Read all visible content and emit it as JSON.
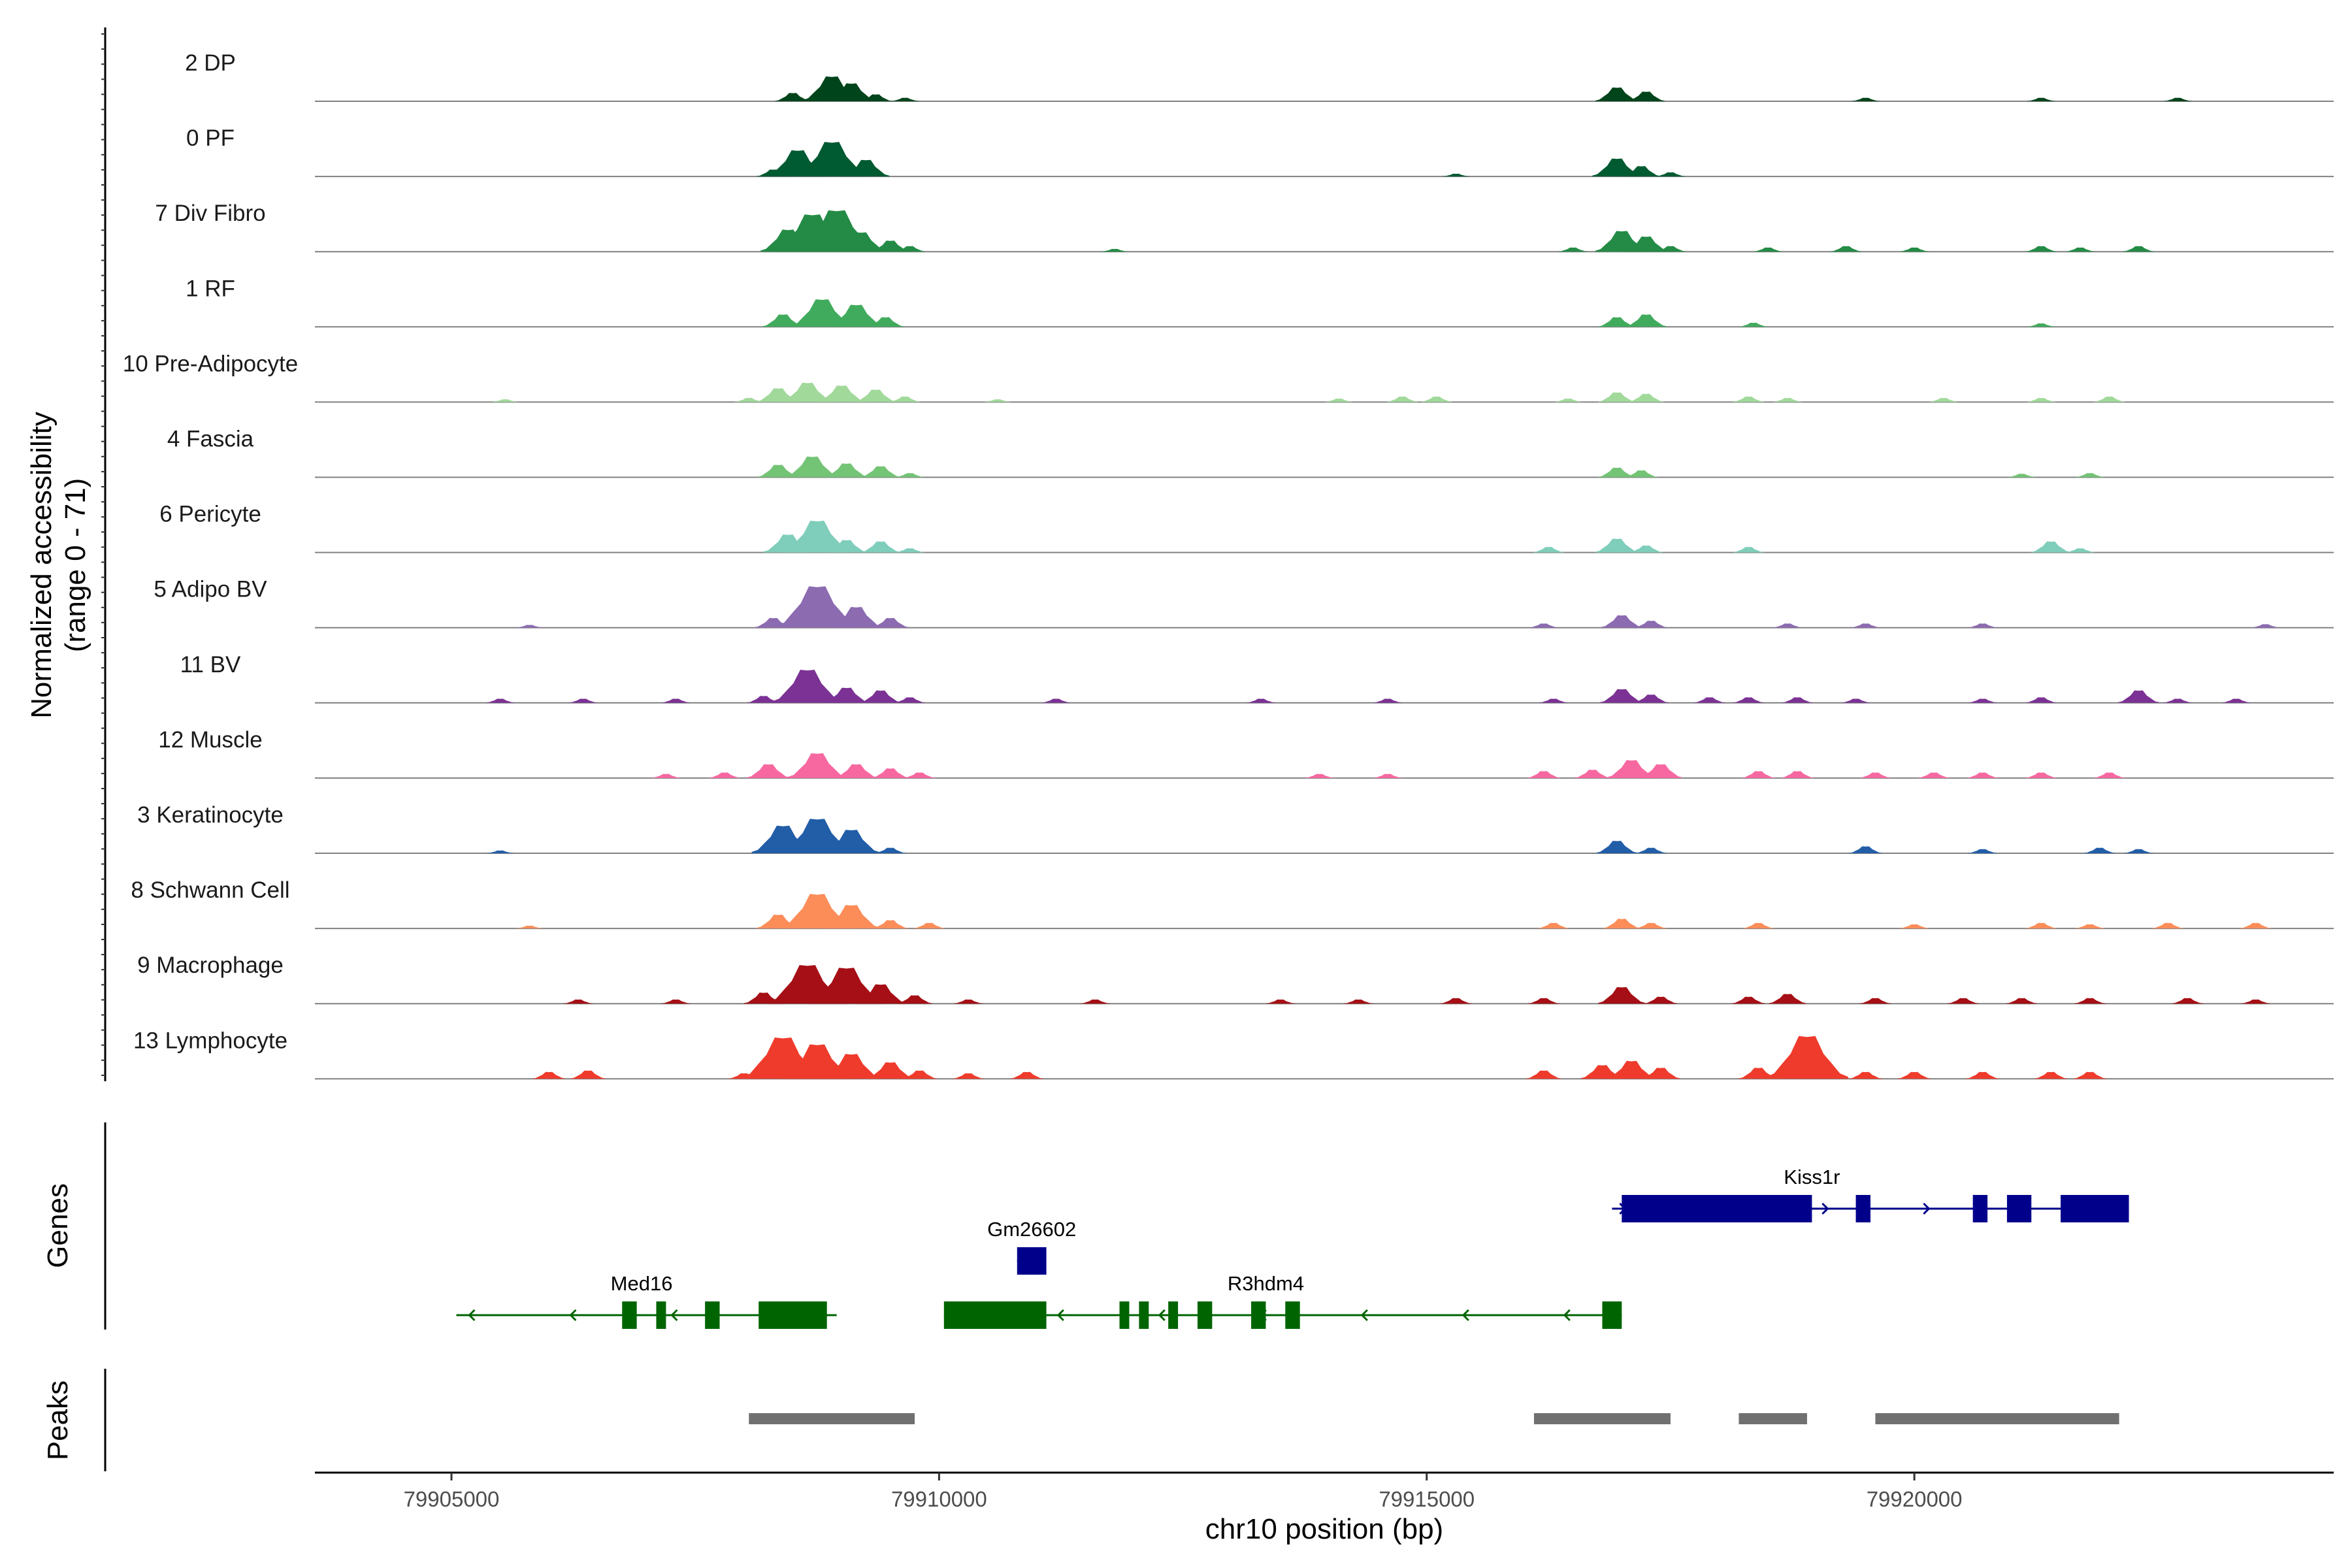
{
  "chart_data": {
    "type": "area",
    "description_chromosome": "chr10",
    "xlabel": "chr10 position (bp)",
    "ylabel": "Normalized accessibility",
    "ylabel_range": "(range 0 - 71)",
    "ylim": [
      0,
      71
    ],
    "xlim": [
      79903600,
      79924300
    ],
    "x_ticks": [
      79905000,
      79910000,
      79915000,
      79920000
    ],
    "panel_labels": {
      "genes": "Genes",
      "peaks": "Peaks"
    },
    "tracks": [
      {
        "name": "2 DP",
        "color": "#00441b",
        "peaks": [
          [
            79908500,
            12
          ],
          [
            79908900,
            36
          ],
          [
            79909100,
            26
          ],
          [
            79909350,
            10
          ],
          [
            79909650,
            5
          ],
          [
            79916950,
            20
          ],
          [
            79917250,
            14
          ],
          [
            79919500,
            5
          ],
          [
            79921300,
            5
          ],
          [
            79922700,
            5
          ]
        ]
      },
      {
        "name": "0 PF",
        "color": "#005a32",
        "peaks": [
          [
            79908300,
            10
          ],
          [
            79908550,
            38
          ],
          [
            79908900,
            50
          ],
          [
            79909250,
            24
          ],
          [
            79915300,
            4
          ],
          [
            79916950,
            26
          ],
          [
            79917200,
            15
          ],
          [
            79917500,
            6
          ]
        ]
      },
      {
        "name": "7 Div Fibro",
        "color": "#238b45",
        "peaks": [
          [
            79908450,
            32
          ],
          [
            79908700,
            54
          ],
          [
            79908950,
            60
          ],
          [
            79909200,
            28
          ],
          [
            79909500,
            16
          ],
          [
            79909700,
            8
          ],
          [
            79911800,
            4
          ],
          [
            79916500,
            6
          ],
          [
            79917000,
            30
          ],
          [
            79917250,
            22
          ],
          [
            79917500,
            8
          ],
          [
            79918500,
            6
          ],
          [
            79919300,
            8
          ],
          [
            79920000,
            6
          ],
          [
            79921300,
            8
          ],
          [
            79921700,
            6
          ],
          [
            79922300,
            8
          ]
        ]
      },
      {
        "name": "1 RF",
        "color": "#41ab5d",
        "peaks": [
          [
            79908400,
            18
          ],
          [
            79908800,
            40
          ],
          [
            79909150,
            32
          ],
          [
            79909450,
            14
          ],
          [
            79916950,
            14
          ],
          [
            79917250,
            18
          ],
          [
            79918350,
            6
          ],
          [
            79921300,
            5
          ]
        ]
      },
      {
        "name": "10 Pre-Adipocyte",
        "color": "#a1d99b",
        "peaks": [
          [
            79905550,
            4
          ],
          [
            79908050,
            6
          ],
          [
            79908350,
            20
          ],
          [
            79908650,
            28
          ],
          [
            79909000,
            24
          ],
          [
            79909350,
            18
          ],
          [
            79909650,
            8
          ],
          [
            79910600,
            4
          ],
          [
            79914100,
            5
          ],
          [
            79914750,
            8
          ],
          [
            79915100,
            8
          ],
          [
            79916450,
            5
          ],
          [
            79916950,
            14
          ],
          [
            79917250,
            12
          ],
          [
            79918300,
            8
          ],
          [
            79918700,
            6
          ],
          [
            79920300,
            6
          ],
          [
            79921300,
            6
          ],
          [
            79922000,
            8
          ]
        ]
      },
      {
        "name": "4 Fascia",
        "color": "#74c476",
        "peaks": [
          [
            79908350,
            18
          ],
          [
            79908700,
            30
          ],
          [
            79909050,
            20
          ],
          [
            79909400,
            16
          ],
          [
            79909700,
            6
          ],
          [
            79916950,
            14
          ],
          [
            79917200,
            10
          ],
          [
            79921100,
            5
          ],
          [
            79921800,
            6
          ]
        ]
      },
      {
        "name": "6 Pericyte",
        "color": "#7fcdbb",
        "peaks": [
          [
            79908450,
            26
          ],
          [
            79908750,
            46
          ],
          [
            79909050,
            18
          ],
          [
            79909400,
            16
          ],
          [
            79909700,
            6
          ],
          [
            79916250,
            8
          ],
          [
            79916950,
            20
          ],
          [
            79917250,
            10
          ],
          [
            79918300,
            8
          ],
          [
            79921400,
            16
          ],
          [
            79921700,
            6
          ]
        ]
      },
      {
        "name": "5 Adipo BV",
        "color": "#8c6bb1",
        "peaks": [
          [
            79908300,
            14
          ],
          [
            79908750,
            60
          ],
          [
            79909150,
            30
          ],
          [
            79909500,
            14
          ],
          [
            79905800,
            4
          ],
          [
            79916200,
            6
          ],
          [
            79917000,
            18
          ],
          [
            79917300,
            10
          ],
          [
            79918700,
            6
          ],
          [
            79919500,
            6
          ],
          [
            79920700,
            6
          ],
          [
            79923600,
            5
          ]
        ]
      },
      {
        "name": "11 BV",
        "color": "#7b3294",
        "peaks": [
          [
            79905500,
            6
          ],
          [
            79906350,
            6
          ],
          [
            79907300,
            6
          ],
          [
            79908200,
            10
          ],
          [
            79908650,
            48
          ],
          [
            79909050,
            22
          ],
          [
            79909400,
            18
          ],
          [
            79909700,
            8
          ],
          [
            79911200,
            6
          ],
          [
            79913300,
            6
          ],
          [
            79914600,
            6
          ],
          [
            79916300,
            6
          ],
          [
            79917000,
            20
          ],
          [
            79917300,
            12
          ],
          [
            79917900,
            8
          ],
          [
            79918300,
            8
          ],
          [
            79918800,
            8
          ],
          [
            79919400,
            6
          ],
          [
            79920700,
            6
          ],
          [
            79921300,
            8
          ],
          [
            79922300,
            18
          ],
          [
            79922700,
            6
          ],
          [
            79923300,
            6
          ]
        ]
      },
      {
        "name": "12 Muscle",
        "color": "#f768a1",
        "peaks": [
          [
            79907200,
            6
          ],
          [
            79907800,
            8
          ],
          [
            79908250,
            20
          ],
          [
            79908750,
            36
          ],
          [
            79909150,
            20
          ],
          [
            79909500,
            14
          ],
          [
            79909800,
            8
          ],
          [
            79913900,
            6
          ],
          [
            79914600,
            6
          ],
          [
            79916200,
            10
          ],
          [
            79916700,
            12
          ],
          [
            79917100,
            26
          ],
          [
            79917400,
            20
          ],
          [
            79918400,
            10
          ],
          [
            79918800,
            10
          ],
          [
            79919600,
            8
          ],
          [
            79920200,
            8
          ],
          [
            79920700,
            8
          ],
          [
            79921300,
            8
          ],
          [
            79922000,
            8
          ]
        ]
      },
      {
        "name": "3 Keratinocyte",
        "color": "#225ea8",
        "peaks": [
          [
            79905500,
            4
          ],
          [
            79908400,
            40
          ],
          [
            79908750,
            50
          ],
          [
            79909100,
            34
          ],
          [
            79909500,
            8
          ],
          [
            79916950,
            18
          ],
          [
            79917300,
            8
          ],
          [
            79919500,
            10
          ],
          [
            79920700,
            6
          ],
          [
            79921900,
            8
          ],
          [
            79922300,
            6
          ]
        ]
      },
      {
        "name": "8 Schwann Cell",
        "color": "#fc8d59",
        "peaks": [
          [
            79905800,
            4
          ],
          [
            79908350,
            20
          ],
          [
            79908750,
            50
          ],
          [
            79909100,
            34
          ],
          [
            79909500,
            12
          ],
          [
            79909900,
            8
          ],
          [
            79916300,
            8
          ],
          [
            79917000,
            14
          ],
          [
            79917300,
            8
          ],
          [
            79918400,
            8
          ],
          [
            79920000,
            6
          ],
          [
            79921300,
            8
          ],
          [
            79921800,
            6
          ],
          [
            79922600,
            8
          ],
          [
            79923500,
            8
          ]
        ]
      },
      {
        "name": "9 Macrophage",
        "color": "#a50f15",
        "peaks": [
          [
            79906300,
            6
          ],
          [
            79907300,
            6
          ],
          [
            79908200,
            16
          ],
          [
            79908650,
            56
          ],
          [
            79909050,
            52
          ],
          [
            79909400,
            28
          ],
          [
            79909750,
            12
          ],
          [
            79910300,
            6
          ],
          [
            79911600,
            6
          ],
          [
            79913500,
            6
          ],
          [
            79914300,
            6
          ],
          [
            79915300,
            8
          ],
          [
            79916200,
            8
          ],
          [
            79917000,
            24
          ],
          [
            79917400,
            10
          ],
          [
            79918300,
            10
          ],
          [
            79918700,
            14
          ],
          [
            79919600,
            8
          ],
          [
            79920500,
            8
          ],
          [
            79921100,
            8
          ],
          [
            79921800,
            8
          ],
          [
            79922800,
            8
          ],
          [
            79923500,
            6
          ]
        ]
      },
      {
        "name": "13 Lymphocyte",
        "color": "#ef3b2c",
        "peaks": [
          [
            79906000,
            10
          ],
          [
            79906400,
            12
          ],
          [
            79908000,
            8
          ],
          [
            79908400,
            60
          ],
          [
            79908750,
            50
          ],
          [
            79909100,
            36
          ],
          [
            79909500,
            24
          ],
          [
            79909800,
            12
          ],
          [
            79910300,
            8
          ],
          [
            79910900,
            10
          ],
          [
            79916200,
            12
          ],
          [
            79916800,
            20
          ],
          [
            79917100,
            26
          ],
          [
            79917400,
            16
          ],
          [
            79918400,
            16
          ],
          [
            79918900,
            62
          ],
          [
            79919500,
            10
          ],
          [
            79920000,
            10
          ],
          [
            79920700,
            10
          ],
          [
            79921400,
            10
          ],
          [
            79921800,
            10
          ]
        ]
      }
    ],
    "genes": [
      {
        "name": "Med16",
        "strand": "-",
        "color": "#006400",
        "row": 3,
        "label_at": 79906950,
        "start": 79905050,
        "end": 79908950,
        "exons": [
          [
            79906750,
            79906900
          ],
          [
            79907100,
            79907200
          ],
          [
            79907600,
            79907750
          ],
          [
            79908150,
            79908850
          ]
        ]
      },
      {
        "name": "Gm26602",
        "strand": "+",
        "color": "#00008b",
        "row": 2,
        "label_at": 79910950,
        "start": 79910800,
        "end": 79911100,
        "exons": [
          [
            79910800,
            79911100
          ]
        ]
      },
      {
        "name": "R3hdm4",
        "strand": "-",
        "color": "#006400",
        "row": 3,
        "label_at": 79913350,
        "start": 79910050,
        "end": 79917000,
        "exons": [
          [
            79910050,
            79911100
          ],
          [
            79911850,
            79911950
          ],
          [
            79912050,
            79912150
          ],
          [
            79912350,
            79912450
          ],
          [
            79912650,
            79912800
          ],
          [
            79913200,
            79913350
          ],
          [
            79913550,
            79913700
          ],
          [
            79916800,
            79917000
          ]
        ]
      },
      {
        "name": "Kiss1r",
        "strand": "+",
        "color": "#00008b",
        "row": 1,
        "label_at": 79918950,
        "start": 79916900,
        "end": 79922200,
        "exons": [
          [
            79917000,
            79918950
          ],
          [
            79919400,
            79919550
          ],
          [
            79920600,
            79920750
          ],
          [
            79920950,
            79921200
          ],
          [
            79921500,
            79922200
          ]
        ]
      }
    ],
    "peak_regions": [
      [
        79908050,
        79909750
      ],
      [
        79916100,
        79917500
      ],
      [
        79918200,
        79918900
      ],
      [
        79919600,
        79922100
      ]
    ]
  }
}
